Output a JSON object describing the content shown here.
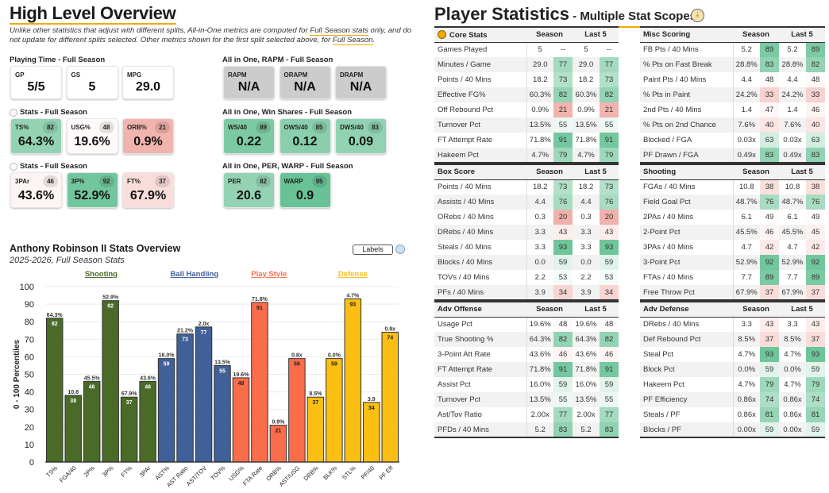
{
  "overview": {
    "title": "High Level Overview",
    "note_part1": "Unlike other statistics that adjust with different splits, All-in-One metrics are computed for ",
    "note_link1": "Full Season stats",
    "note_part2": " only, and do not update for different splits selected. Other metrics shown for the first split selected above, for ",
    "note_link2": "Full Season",
    "note_part3": ".",
    "groups": [
      {
        "label": "Playing Time - Full Season",
        "radio": false,
        "cards": [
          {
            "name": "GP",
            "value": "5/5"
          },
          {
            "name": "GS",
            "value": "5"
          },
          {
            "name": "MPG",
            "value": "29.0"
          }
        ]
      },
      {
        "label": "Stats - Full Season",
        "radio": true,
        "cards": [
          {
            "name": "TS%",
            "value": "64.3%",
            "pct": 82
          },
          {
            "name": "USG%",
            "value": "19.6%",
            "pct": 48
          },
          {
            "name": "ORB%",
            "value": "0.9%",
            "pct": 21
          }
        ]
      },
      {
        "label": "Stats - Full Season",
        "radio": true,
        "cards": [
          {
            "name": "3PAr",
            "value": "43.6%",
            "pct": 46
          },
          {
            "name": "3P%",
            "value": "52.9%",
            "pct": 92
          },
          {
            "name": "FT%",
            "value": "67.9%",
            "pct": 37
          }
        ]
      },
      {
        "label": "All in One, RAPM - Full Season",
        "radio": false,
        "cards": [
          {
            "name": "RAPM",
            "value": "N/A",
            "na": true
          },
          {
            "name": "ORAPM",
            "value": "N/A",
            "na": true
          },
          {
            "name": "DRAPM",
            "value": "N/A",
            "na": true
          }
        ]
      },
      {
        "label": "All in One, Win Shares - Full Season",
        "radio": false,
        "cards": [
          {
            "name": "WS/40",
            "value": "0.22",
            "pct": 89
          },
          {
            "name": "OWS/40",
            "value": "0.12",
            "pct": 85
          },
          {
            "name": "DWS/40",
            "value": "0.09",
            "pct": 83
          }
        ]
      },
      {
        "label": "All in One, PER, WARP - Full Season",
        "radio": false,
        "cards": [
          {
            "name": "PER",
            "value": "20.6",
            "pct": 82
          },
          {
            "name": "WARP",
            "value": "0.9",
            "pct": 95
          }
        ]
      }
    ]
  },
  "chart_data": {
    "type": "bar",
    "title": "Anthony Robinson II Stats Overview",
    "subtitle": "2025-2026, Full Season Stats",
    "ylabel": "0 - 100 Percentiles",
    "ylim": [
      0,
      100
    ],
    "yticks": [
      0,
      10,
      20,
      30,
      40,
      50,
      60,
      70,
      80,
      90,
      100
    ],
    "labels_button": "Labels",
    "groups": [
      {
        "name": "Shooting",
        "color": "#4a6b27",
        "start": 0,
        "end": 5
      },
      {
        "name": "Ball Handling",
        "color": "#3f6098",
        "start": 6,
        "end": 9
      },
      {
        "name": "Play Style",
        "color": "#fa6d4b",
        "start": 10,
        "end": 13
      },
      {
        "name": "Defense",
        "color": "#fbbe13",
        "start": 14,
        "end": 18
      }
    ],
    "categories": [
      "TS%",
      "FGA/40",
      "2P%",
      "3P%",
      "FT%",
      "3PAr",
      "AST%",
      "AST Ratio",
      "AST/TOV",
      "TOV%",
      "USG%",
      "FTA Rate",
      "ORB%",
      "AST/USG",
      "DRB%",
      "BLK%",
      "STL%",
      "PF/40",
      "PF Eff"
    ],
    "values": [
      82,
      38,
      46,
      92,
      37,
      46,
      59,
      73,
      77,
      55,
      48,
      91,
      21,
      59,
      37,
      59,
      93,
      34,
      74
    ],
    "stat_labels": [
      "64.3%",
      "10.8",
      "45.5%",
      "52.9%",
      "67.9%",
      "43.6%",
      "16.0%",
      "21.2%",
      "2.0x",
      "13.5%",
      "19.6%",
      "71.8%",
      "0.9%",
      "0.8x",
      "8.5%",
      "0.0%",
      "4.7%",
      "3.9",
      "0.9x"
    ]
  },
  "stats": {
    "title": "Player Statistics",
    "subtitle": " - Multiple Stat Scopes",
    "col_season": "Season",
    "col_last5": "Last 5",
    "tables": [
      {
        "title": "Core Stats",
        "icon": true,
        "rows": [
          [
            "Games Played",
            "5",
            "--",
            "5",
            "--"
          ],
          [
            "Minutes / Game",
            "29.0",
            77,
            "29.0",
            77
          ],
          [
            "Points / 40 Mins",
            "18.2",
            73,
            "18.2",
            73
          ],
          [
            "Effective FG%",
            "60.3%",
            82,
            "60.3%",
            82
          ],
          [
            "Off Rebound Pct",
            "0.9%",
            21,
            "0.9%",
            21
          ],
          [
            "Turnover Pct",
            "13.5%",
            55,
            "13.5%",
            55
          ],
          [
            "FT Attempt Rate",
            "71.8%",
            91,
            "71.8%",
            91
          ],
          [
            "Hakeem Pct",
            "4.7%",
            79,
            "4.7%",
            79
          ]
        ]
      },
      {
        "title": "Misc Scoring",
        "rows": [
          [
            "FB Pts / 40 Mins",
            "5.2",
            89,
            "5.2",
            89
          ],
          [
            "% Pts on Fast Break",
            "28.8%",
            83,
            "28.8%",
            82
          ],
          [
            "Paint Pts / 40 Mins",
            "4.4",
            48,
            "4.4",
            48
          ],
          [
            "% Pts in Paint",
            "24.2%",
            33,
            "24.2%",
            33
          ],
          [
            "2nd Pts / 40 Mins",
            "1.4",
            47,
            "1.4",
            46
          ],
          [
            "% Pts on 2nd Chance",
            "7.6%",
            40,
            "7.6%",
            40
          ],
          [
            "Blocked / FGA",
            "0.03x",
            63,
            "0.03x",
            63
          ],
          [
            "PF Drawn / FGA",
            "0.49x",
            83,
            "0.49x",
            83
          ]
        ]
      },
      {
        "title": "Box Score",
        "rows": [
          [
            "Points / 40 Mins",
            "18.2",
            73,
            "18.2",
            73
          ],
          [
            "Assists / 40 Mins",
            "4.4",
            76,
            "4.4",
            76
          ],
          [
            "ORebs / 40 Mins",
            "0.3",
            20,
            "0.3",
            20
          ],
          [
            "DRebs / 40 Mins",
            "3.3",
            43,
            "3.3",
            43
          ],
          [
            "Steals / 40 Mins",
            "3.3",
            93,
            "3.3",
            93
          ],
          [
            "Blocks / 40 Mins",
            "0.0",
            59,
            "0.0",
            59
          ],
          [
            "TOVs / 40 Mins",
            "2.2",
            53,
            "2.2",
            53
          ],
          [
            "PFs / 40 Mins",
            "3.9",
            34,
            "3.9",
            34
          ]
        ]
      },
      {
        "title": "Shooting",
        "rows": [
          [
            "FGAs / 40 Mins",
            "10.8",
            38,
            "10.8",
            38
          ],
          [
            "Field Goal Pct",
            "48.7%",
            76,
            "48.7%",
            76
          ],
          [
            "2PAs / 40 Mins",
            "6.1",
            49,
            "6.1",
            49
          ],
          [
            "2-Point Pct",
            "45.5%",
            46,
            "45.5%",
            45
          ],
          [
            "3PAs / 40 Mins",
            "4.7",
            42,
            "4.7",
            42
          ],
          [
            "3-Point Pct",
            "52.9%",
            92,
            "52.9%",
            92
          ],
          [
            "FTAs / 40 Mins",
            "7.7",
            89,
            "7.7",
            89
          ],
          [
            "Free Throw Pct",
            "67.9%",
            37,
            "67.9%",
            37
          ]
        ]
      },
      {
        "title": "Adv Offense",
        "rows": [
          [
            "Usage Pct",
            "19.6%",
            48,
            "19.6%",
            48
          ],
          [
            "True Shooting %",
            "64.3%",
            82,
            "64.3%",
            82
          ],
          [
            "3-Point Att Rate",
            "43.6%",
            46,
            "43.6%",
            46
          ],
          [
            "FT Attempt Rate",
            "71.8%",
            91,
            "71.8%",
            91
          ],
          [
            "Assist Pct",
            "16.0%",
            59,
            "16.0%",
            59
          ],
          [
            "Turnover Pct",
            "13.5%",
            55,
            "13.5%",
            55
          ],
          [
            "Ast/Tov Ratio",
            "2.00x",
            77,
            "2.00x",
            77
          ],
          [
            "PFDs / 40 Mins",
            "5.2",
            83,
            "5.2",
            83
          ]
        ]
      },
      {
        "title": "Adv Defense",
        "rows": [
          [
            "DRebs / 40 Mins",
            "3.3",
            43,
            "3.3",
            43
          ],
          [
            "Def Rebound Pct",
            "8.5%",
            37,
            "8.5%",
            37
          ],
          [
            "Steal Pct",
            "4.7%",
            93,
            "4.7%",
            93
          ],
          [
            "Block Pct",
            "0.0%",
            59,
            "0.0%",
            59
          ],
          [
            "Hakeem Pct",
            "4.7%",
            79,
            "4.7%",
            79
          ],
          [
            "PF Efficiency",
            "0.86x",
            74,
            "0.86x",
            74
          ],
          [
            "Steals / PF",
            "0.86x",
            81,
            "0.86x",
            81
          ],
          [
            "Blocks / PF",
            "0.00x",
            59,
            "0.00x",
            59
          ]
        ]
      }
    ]
  }
}
